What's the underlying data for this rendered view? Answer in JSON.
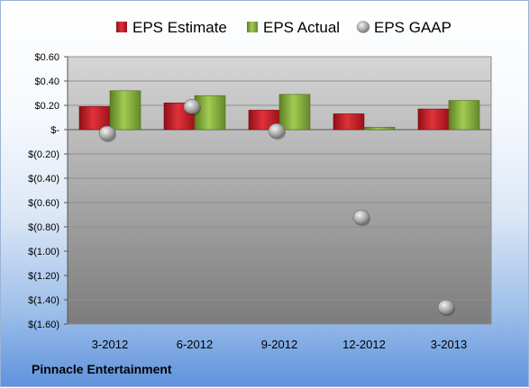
{
  "company_label": "Pinnacle Entertainment",
  "colors": {
    "estimate": "#d11f28",
    "actual": "#86b23a",
    "gaap": "#9a9a9a",
    "plot_top": "#d6d6d6",
    "plot_bottom": "#7c7c7c"
  },
  "chart_data": {
    "type": "bar",
    "title": "",
    "xlabel": "",
    "ylabel": "",
    "categories": [
      "3-2012",
      "6-2012",
      "9-2012",
      "12-2012",
      "3-2013"
    ],
    "series": [
      {
        "name": "EPS Estimate",
        "kind": "bar",
        "values": [
          0.19,
          0.22,
          0.16,
          0.13,
          0.17
        ]
      },
      {
        "name": "EPS Actual",
        "kind": "bar",
        "values": [
          0.32,
          0.28,
          0.29,
          0.02,
          0.24
        ]
      },
      {
        "name": "EPS GAAP",
        "kind": "marker",
        "values": [
          -0.03,
          0.19,
          -0.01,
          -0.72,
          -1.46
        ]
      }
    ],
    "ylim": [
      -1.6,
      0.6
    ],
    "yticks": [
      0.6,
      0.4,
      0.2,
      0,
      -0.2,
      -0.4,
      -0.6,
      -0.8,
      -1.0,
      -1.2,
      -1.4,
      -1.6
    ],
    "ytick_labels": [
      "$0.60",
      "$0.40",
      "$0.20",
      "$-",
      "$(0.20)",
      "$(0.40)",
      "$(0.60)",
      "$(0.80)",
      "$(1.00)",
      "$(1.20)",
      "$(1.40)",
      "$(1.60)"
    ],
    "grid": true,
    "legend_position": "top"
  }
}
